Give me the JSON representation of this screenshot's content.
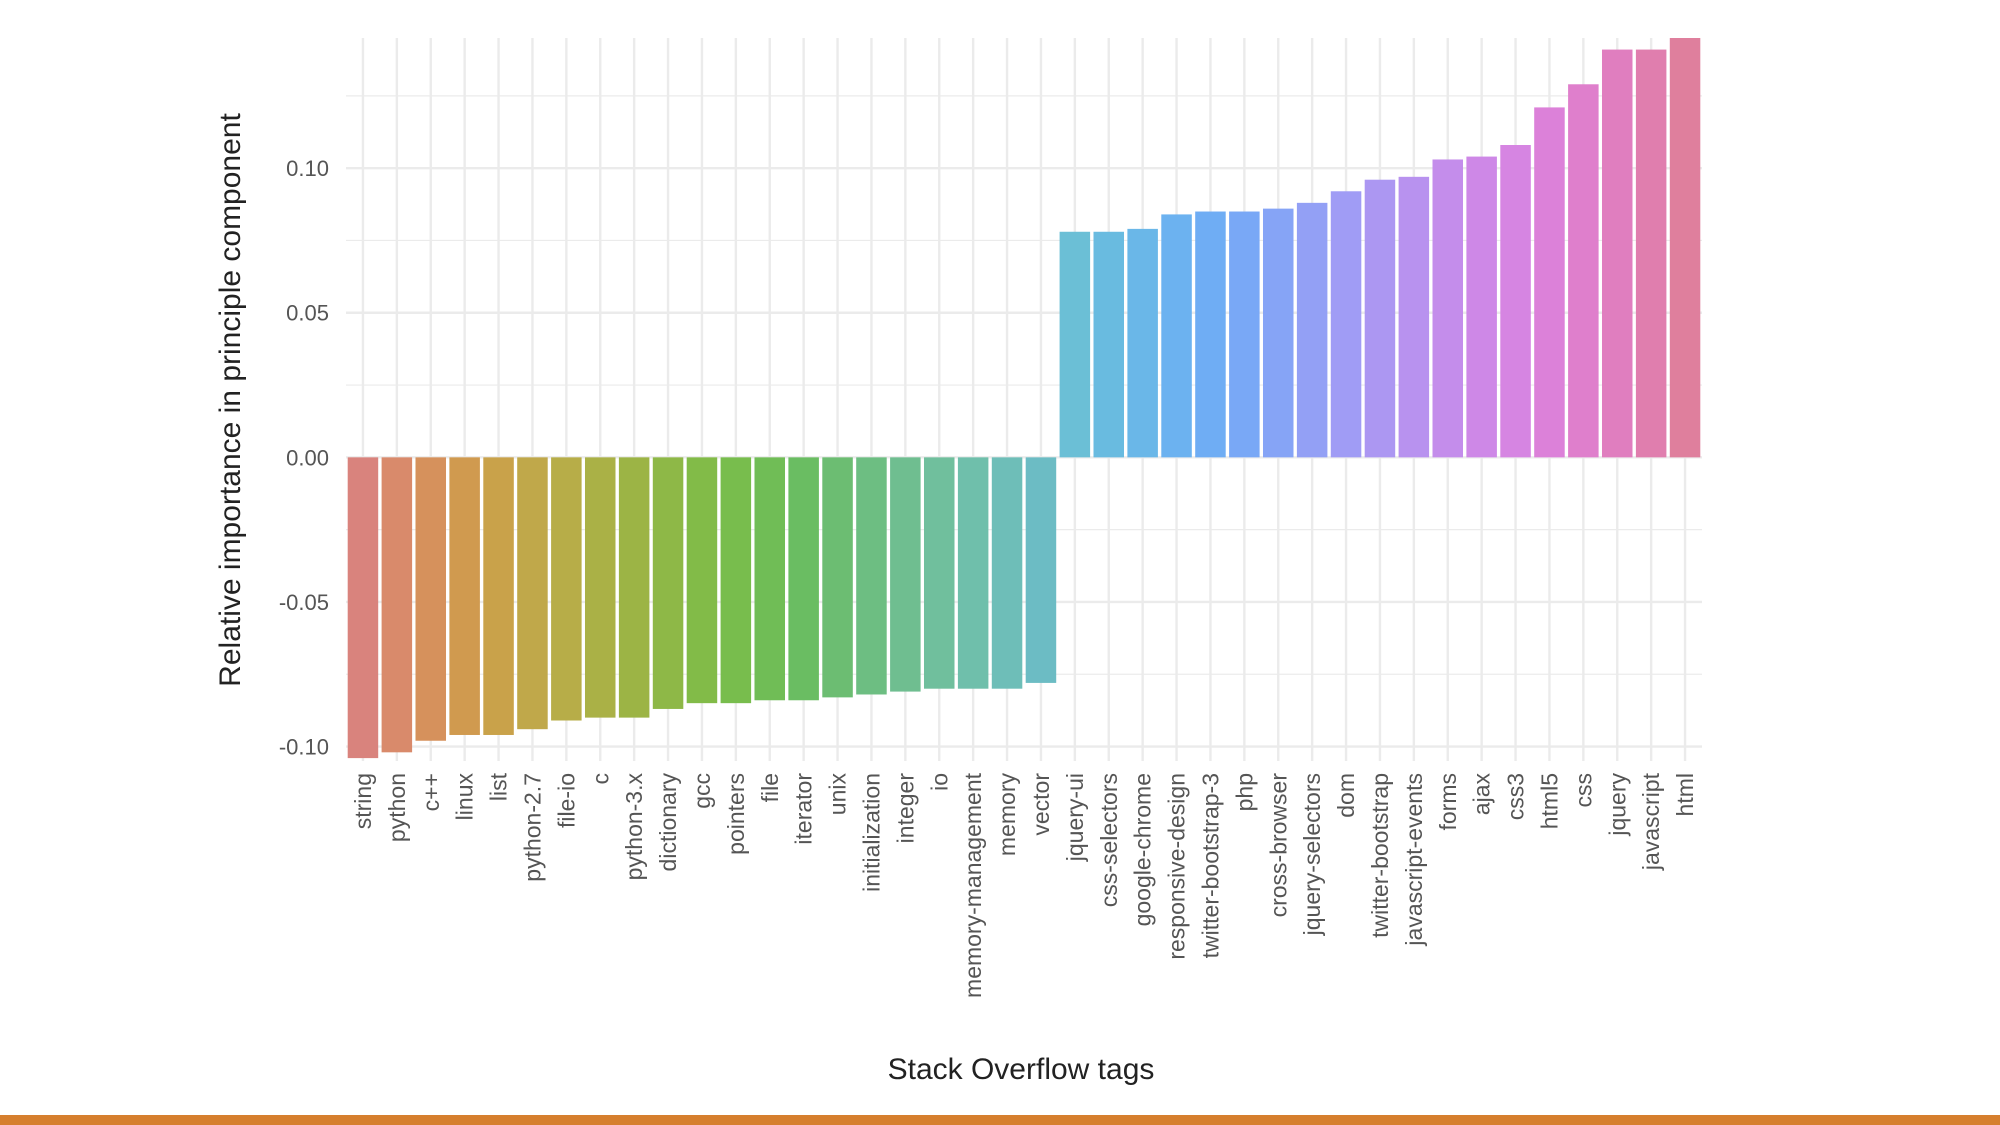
{
  "colors": {
    "background": "#ffffff",
    "grid": "#ebebeb",
    "accent_bar": "#d67f2e"
  },
  "chart_data": {
    "type": "bar",
    "title": "",
    "xlabel": "Stack Overflow tags",
    "ylabel": "Relative importance in principle component",
    "ylim": [
      -0.105,
      0.145
    ],
    "yticks": [
      -0.1,
      -0.05,
      0.0,
      0.05,
      0.1
    ],
    "ytick_labels": [
      "-0.10",
      "-0.05",
      "0.00",
      "0.05",
      "0.10"
    ],
    "grid": true,
    "legend": "none",
    "categories": [
      "string",
      "python",
      "c++",
      "linux",
      "list",
      "python-2.7",
      "file-io",
      "c",
      "python-3.x",
      "dictionary",
      "gcc",
      "pointers",
      "file",
      "iterator",
      "unix",
      "initialization",
      "integer",
      "io",
      "memory-management",
      "memory",
      "vector",
      "jquery-ui",
      "css-selectors",
      "google-chrome",
      "responsive-design",
      "twitter-bootstrap-3",
      "php",
      "cross-browser",
      "jquery-selectors",
      "dom",
      "twitter-bootstrap",
      "javascript-events",
      "forms",
      "ajax",
      "css3",
      "html5",
      "css",
      "jquery",
      "javascript",
      "html"
    ],
    "values": [
      -0.104,
      -0.102,
      -0.098,
      -0.096,
      -0.096,
      -0.094,
      -0.091,
      -0.09,
      -0.09,
      -0.087,
      -0.085,
      -0.085,
      -0.084,
      -0.084,
      -0.083,
      -0.082,
      -0.081,
      -0.08,
      -0.08,
      -0.08,
      -0.078,
      0.078,
      0.078,
      0.079,
      0.084,
      0.085,
      0.085,
      0.086,
      0.088,
      0.092,
      0.096,
      0.097,
      0.103,
      0.104,
      0.108,
      0.121,
      0.129,
      0.141,
      0.141,
      0.145
    ],
    "colors": [
      "#d9837d",
      "#d98a6b",
      "#d6915c",
      "#d09a4f",
      "#c9a24a",
      "#c0a84a",
      "#b7ad48",
      "#aab146",
      "#9cb445",
      "#8eb847",
      "#82bb48",
      "#78bd4d",
      "#70bd56",
      "#6abd62",
      "#6cbd72",
      "#6dbe82",
      "#6fbe90",
      "#70bf9d",
      "#6fbfab",
      "#6ebeb8",
      "#6cbcc4",
      "#6bbfd6",
      "#69bbe0",
      "#6ab7e8",
      "#6cb2f0",
      "#6fadf4",
      "#79a8f6",
      "#86a4f6",
      "#93a0f5",
      "#a09cf5",
      "#ac97f2",
      "#b892ef",
      "#c48deb",
      "#ce88e7",
      "#d685e2",
      "#dc81d9",
      "#df7fcc",
      "#e07ebf",
      "#e07eae",
      "#df7f9d"
    ]
  }
}
